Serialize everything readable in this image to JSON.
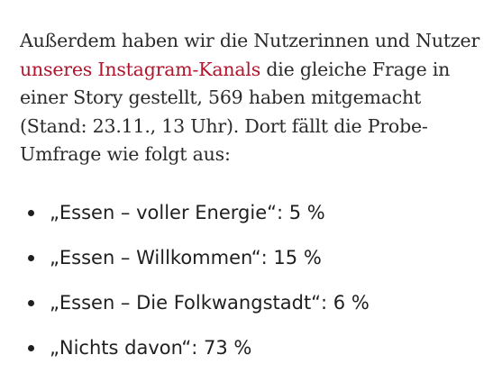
{
  "article": {
    "paragraph": {
      "text_before_link": "Außerdem haben wir die Nutzerinnen und Nutzer ",
      "link_text": "unseres Instagram-Kanals",
      "text_after_link": " die gleiche Frage in einer Story gestellt, 569 haben mitgemacht (Stand: 23.11., 13 Uhr). Dort fällt die Probe-Umfrage wie folgt aus:",
      "link_color": "#b0152c"
    },
    "results": [
      {
        "text": "„Essen – voller Energie“: 5 %"
      },
      {
        "text": "„Essen – Willkommen“: 15 %"
      },
      {
        "text": "„Essen – Die Folkwangstadt“: 6 %"
      },
      {
        "text": "„Nichts davon“: 73 %"
      }
    ]
  }
}
